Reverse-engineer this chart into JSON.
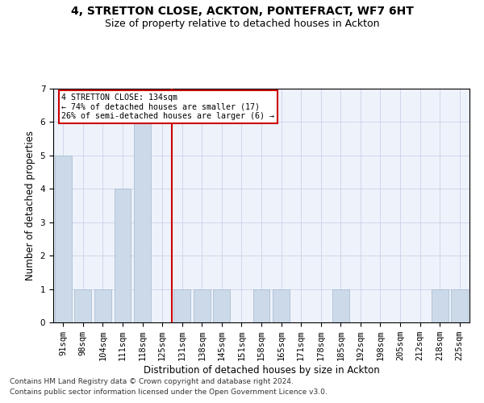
{
  "title1": "4, STRETTON CLOSE, ACKTON, PONTEFRACT, WF7 6HT",
  "title2": "Size of property relative to detached houses in Ackton",
  "xlabel": "Distribution of detached houses by size in Ackton",
  "ylabel": "Number of detached properties",
  "categories": [
    "91sqm",
    "98sqm",
    "104sqm",
    "111sqm",
    "118sqm",
    "125sqm",
    "131sqm",
    "138sqm",
    "145sqm",
    "151sqm",
    "158sqm",
    "165sqm",
    "171sqm",
    "178sqm",
    "185sqm",
    "192sqm",
    "198sqm",
    "205sqm",
    "212sqm",
    "218sqm",
    "225sqm"
  ],
  "values": [
    5,
    1,
    1,
    4,
    6,
    0,
    1,
    1,
    1,
    0,
    1,
    1,
    0,
    0,
    1,
    0,
    0,
    0,
    0,
    1,
    1
  ],
  "bar_color": "#ccd9e8",
  "bar_edge_color": "#aabfd4",
  "vline_x": 5.5,
  "vline_color": "#cc0000",
  "annotation_text": "4 STRETTON CLOSE: 134sqm\n← 74% of detached houses are smaller (17)\n26% of semi-detached houses are larger (6) →",
  "annotation_box_color": "#ffffff",
  "annotation_box_edge": "#cc0000",
  "ylim": [
    0,
    7
  ],
  "yticks": [
    0,
    1,
    2,
    3,
    4,
    5,
    6,
    7
  ],
  "background_color": "#eef2fb",
  "footer1": "Contains HM Land Registry data © Crown copyright and database right 2024.",
  "footer2": "Contains public sector information licensed under the Open Government Licence v3.0.",
  "title1_fontsize": 10,
  "title2_fontsize": 9,
  "xlabel_fontsize": 8.5,
  "ylabel_fontsize": 8.5,
  "tick_fontsize": 7.5,
  "footer_fontsize": 6.5
}
